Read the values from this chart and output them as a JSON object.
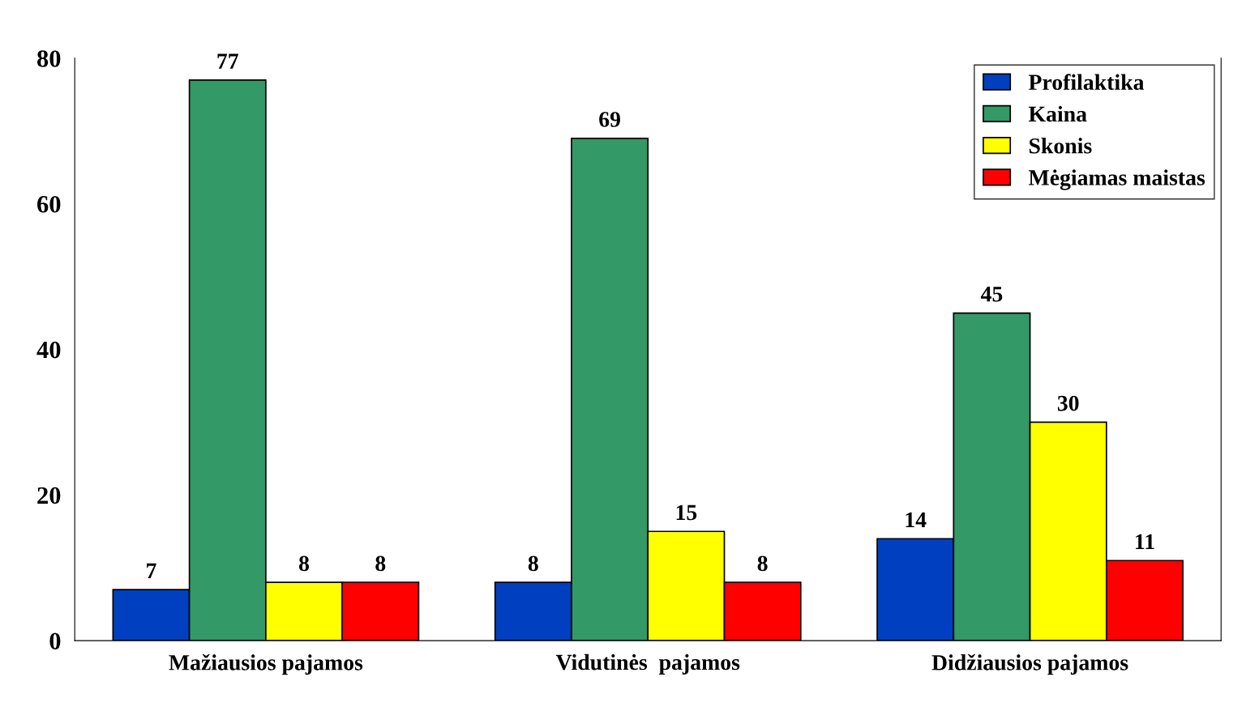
{
  "chart_data": {
    "type": "bar",
    "categories": [
      "Mažiausios pajamos",
      "Vidutinės  pajamos",
      "Didžiausios pajamos"
    ],
    "series": [
      {
        "name": "Profilaktika",
        "color": "#0040c0",
        "values": [
          7,
          8,
          14
        ]
      },
      {
        "name": "Kaina",
        "color": "#339966",
        "values": [
          77,
          69,
          45
        ]
      },
      {
        "name": "Skonis",
        "color": "#ffff00",
        "values": [
          8,
          15,
          30
        ]
      },
      {
        "name": "Mėgiamas maistas",
        "color": "#ff0000",
        "values": [
          8,
          8,
          11
        ]
      }
    ],
    "ylim": [
      0,
      80
    ],
    "yticks": [
      0,
      20,
      40,
      60,
      80
    ],
    "data_labels": true,
    "grid": false,
    "legend": "top right"
  }
}
